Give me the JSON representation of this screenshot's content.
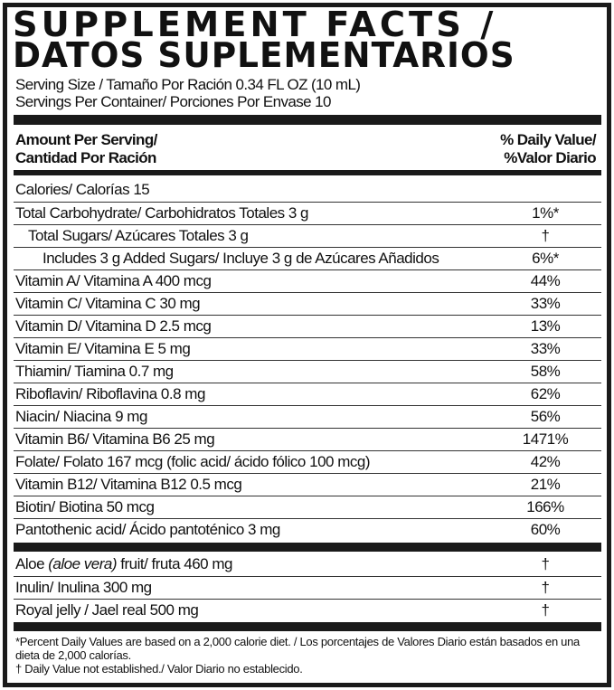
{
  "title": {
    "line1": "SUPPLEMENT FACTS /",
    "line2": "DATOS SUPLEMENTARIOS"
  },
  "serving_size": "Serving Size / Tamaño Por Ración 0.34 FL OZ (10 mL)",
  "servings_per_container": "Servings Per Container/ Porciones Por Envase 10",
  "header": {
    "amount_line1": "Amount Per Serving/",
    "amount_line2": "Cantidad Por Ración",
    "dv_line1": "% Daily Value/",
    "dv_line2": "%Valor Diario"
  },
  "nutrients": [
    {
      "label": "Calories/ Calorías 15",
      "dv": ""
    },
    {
      "label": "Total Carbohydrate/ Carbohidratos Totales 3 g",
      "dv": "1%*"
    },
    {
      "label": "Total Sugars/ Azúcares Totales 3 g",
      "dv": "†"
    },
    {
      "label": "Includes 3 g Added Sugars/ Incluye 3 g de Azúcares Añadidos",
      "dv": "6%*"
    },
    {
      "label": "Vitamin A/ Vitamina A 400 mcg",
      "dv": "44%"
    },
    {
      "label": "Vitamin C/ Vitamina C 30 mg",
      "dv": "33%"
    },
    {
      "label": "Vitamin D/ Vitamina D 2.5 mcg",
      "dv": "13%"
    },
    {
      "label": "Vitamin E/ Vitamina E 5 mg",
      "dv": "33%"
    },
    {
      "label": "Thiamin/ Tiamina 0.7 mg",
      "dv": "58%"
    },
    {
      "label": "Riboflavin/ Riboflavina 0.8 mg",
      "dv": "62%"
    },
    {
      "label": "Niacin/ Niacina 9 mg",
      "dv": "56%"
    },
    {
      "label": "Vitamin B6/ Vitamina B6 25 mg",
      "dv": "1471%"
    },
    {
      "label": "Folate/ Folato 167 mcg (folic acid/ ácido fólico 100 mcg)",
      "dv": "42%"
    },
    {
      "label": "Vitamin B12/ Vitamina B12 0.5 mcg",
      "dv": "21%"
    },
    {
      "label": "Biotin/ Biotina 50 mcg",
      "dv": "166%"
    },
    {
      "label": "Pantothenic acid/ Ácido pantoténico 3 mg",
      "dv": "60%"
    }
  ],
  "other": [
    {
      "label_pre": "Aloe ",
      "label_italic": "(aloe vera)",
      "label_post": " fruit/ fruta 460 mg",
      "dv": "†"
    },
    {
      "label_pre": "Inulin/ Inulina 300 mg",
      "label_italic": "",
      "label_post": "",
      "dv": "†"
    },
    {
      "label_pre": "Royal jelly / Jael real 500 mg",
      "label_italic": "",
      "label_post": "",
      "dv": "†"
    }
  ],
  "footnotes": {
    "percent": "*Percent Daily Values are based on a 2,000 calorie diet. / Los porcentajes de Valores Diario están basados en una dieta de 2,000 calorías.",
    "dagger": "† Daily Value not established./ Valor Diario no establecido."
  }
}
